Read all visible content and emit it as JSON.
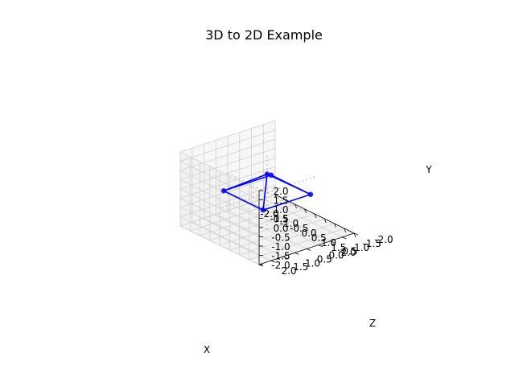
{
  "chart_data": {
    "type": "3d-line",
    "title": "3D to 2D Example",
    "xlabel": "X",
    "ylabel": "Y",
    "zlabel": "Z",
    "xlim": [
      -2.0,
      2.0
    ],
    "ylim": [
      -2.0,
      2.0
    ],
    "zlim": [
      -2.0,
      2.0
    ],
    "x_ticks": [
      "-2.0",
      "-1.5",
      "-1.0",
      "-0.5",
      "0.0",
      "0.5",
      "1.0",
      "1.5",
      "2.0"
    ],
    "y_ticks": [
      "-2.0",
      "-1.5",
      "-1.0",
      "-0.5",
      "0.0",
      "0.5",
      "1.0",
      "1.5",
      "2.0"
    ],
    "z_ticks": [
      "-2.0",
      "-1.5",
      "-1.0",
      "-0.5",
      "0.0",
      "0.5",
      "1.0",
      "1.5",
      "2.0"
    ],
    "grid": true,
    "series": [
      {
        "color": "#0000ff",
        "marker": "circle",
        "points": [
          {
            "x": -1,
            "y": 0,
            "z": -1
          },
          {
            "x": 1,
            "y": 0,
            "z": -1
          },
          {
            "x": 1,
            "y": 0,
            "z": 1
          },
          {
            "x": -1,
            "y": 0,
            "z": 1
          },
          {
            "x": 0,
            "y": 1,
            "z": 0
          }
        ],
        "edges": [
          [
            0,
            1
          ],
          [
            1,
            2
          ],
          [
            2,
            3
          ],
          [
            3,
            0
          ],
          [
            0,
            4
          ],
          [
            1,
            4
          ],
          [
            2,
            4
          ],
          [
            3,
            4
          ]
        ]
      }
    ],
    "reference_axes": {
      "color": "#b0b0b0",
      "style": "dotted"
    },
    "colors": {
      "pane": "#f2f2f2",
      "pane_left": "#f7f7f7",
      "pane_floor": "#f2f2f2",
      "grid": "#d0d0d0",
      "axis": "#000000"
    }
  }
}
